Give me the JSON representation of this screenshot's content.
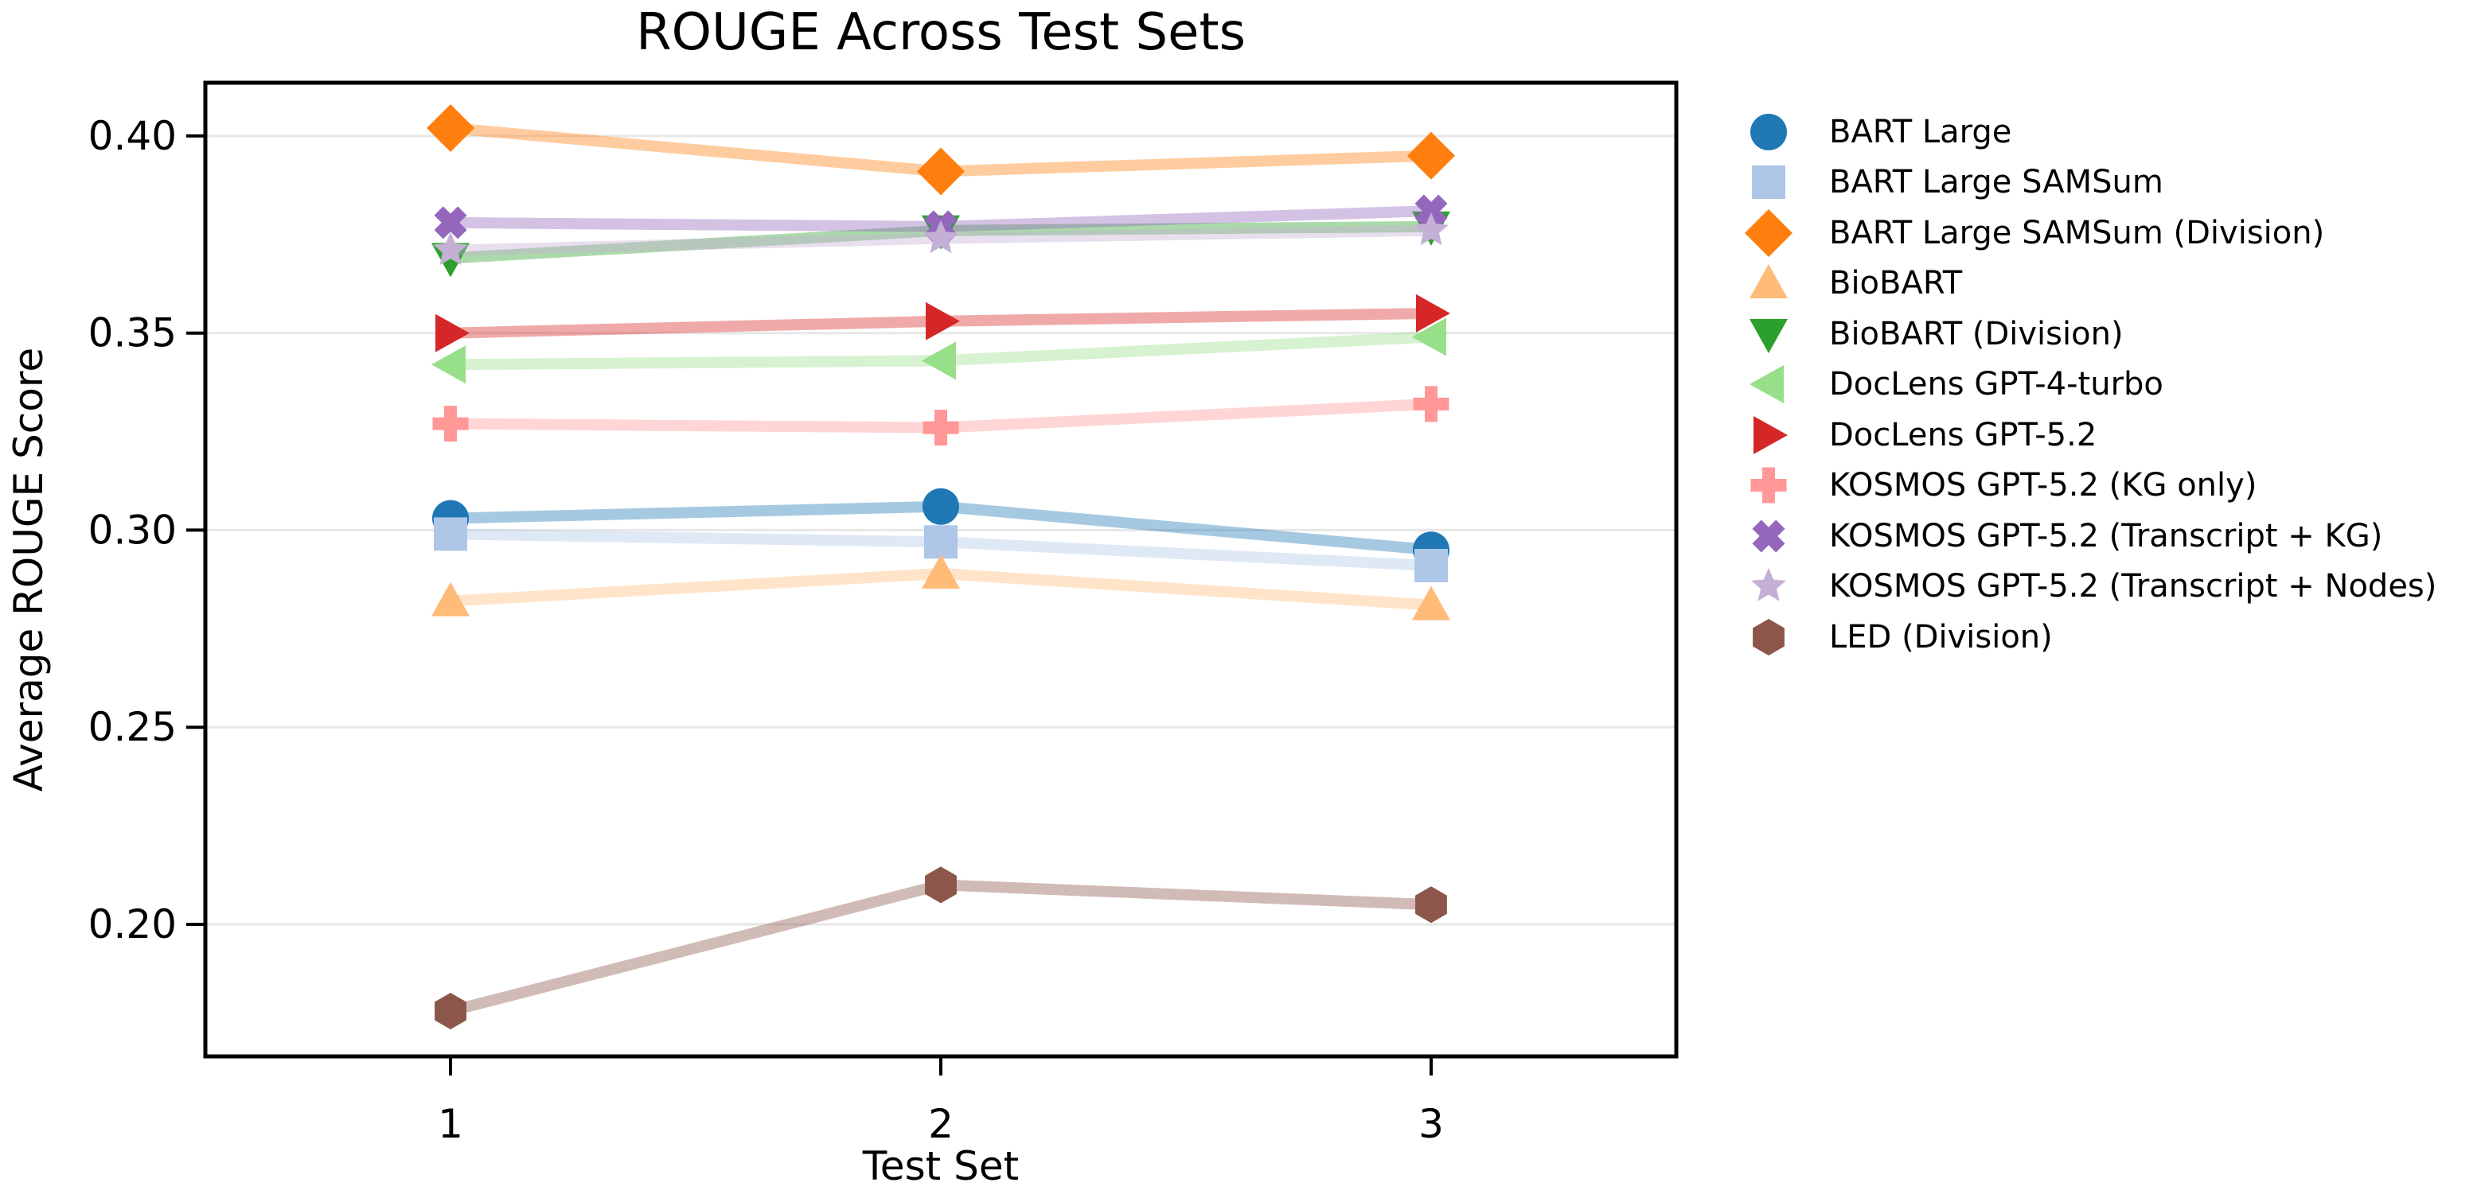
{
  "chart_data": {
    "type": "line",
    "title": "ROUGE Across Test Sets",
    "xlabel": "Test Set",
    "ylabel": "Average ROUGE Score",
    "x": [
      1,
      2,
      3
    ],
    "x_tick_labels": [
      "1",
      "2",
      "3"
    ],
    "y_ticks": [
      0.4,
      0.35,
      0.3,
      0.25,
      0.2
    ],
    "y_tick_labels": [
      "0.40",
      "0.35",
      "0.30",
      "0.25",
      "0.20"
    ],
    "xlim": [
      0.5,
      3.5
    ],
    "ylim": [
      0.1665,
      0.4135
    ],
    "grid": "horizontal-only",
    "legend_position": "right-outside",
    "series": [
      {
        "name": "BART Large",
        "color": "#1f77b4",
        "marker": "circle",
        "values": [
          0.303,
          0.306,
          0.295
        ]
      },
      {
        "name": "BART Large SAMSum",
        "color": "#aec7e8",
        "marker": "square",
        "values": [
          0.299,
          0.297,
          0.291
        ]
      },
      {
        "name": "BART Large SAMSum (Division)",
        "color": "#ff7f0e",
        "marker": "diamond",
        "values": [
          0.402,
          0.391,
          0.395
        ]
      },
      {
        "name": "BioBART",
        "color": "#ffbb78",
        "marker": "triangle-up",
        "values": [
          0.282,
          0.289,
          0.281
        ]
      },
      {
        "name": "BioBART (Division)",
        "color": "#2ca02c",
        "marker": "triangle-down",
        "values": [
          0.369,
          0.376,
          0.377
        ]
      },
      {
        "name": "DocLens GPT-4-turbo",
        "color": "#98df8a",
        "marker": "triangle-left",
        "values": [
          0.342,
          0.343,
          0.349
        ]
      },
      {
        "name": "DocLens GPT-5.2",
        "color": "#d62728",
        "marker": "triangle-right",
        "values": [
          0.35,
          0.353,
          0.355
        ]
      },
      {
        "name": "KOSMOS GPT-5.2 (KG only)",
        "color": "#ff9896",
        "marker": "plus",
        "values": [
          0.327,
          0.326,
          0.332
        ]
      },
      {
        "name": "KOSMOS GPT-5.2 (Transcript + KG)",
        "color": "#9467bd",
        "marker": "x",
        "values": [
          0.378,
          0.377,
          0.381
        ]
      },
      {
        "name": "KOSMOS GPT-5.2 (Transcript + Nodes)",
        "color": "#c5b0d5",
        "marker": "star",
        "values": [
          0.371,
          0.374,
          0.376
        ]
      },
      {
        "name": "LED (Division)",
        "color": "#8c564b",
        "marker": "hexagon",
        "values": [
          0.178,
          0.21,
          0.205
        ]
      }
    ],
    "line_alpha": 0.4,
    "line_width": 14
  },
  "style": {
    "background": "#ffffff",
    "grid_color": "#e7e7e7",
    "spine_color": "#000000",
    "text_color": "#000000",
    "tick_font_size": 50,
    "title_font_size": 64,
    "label_font_size": 50,
    "legend_font_size": 40
  }
}
